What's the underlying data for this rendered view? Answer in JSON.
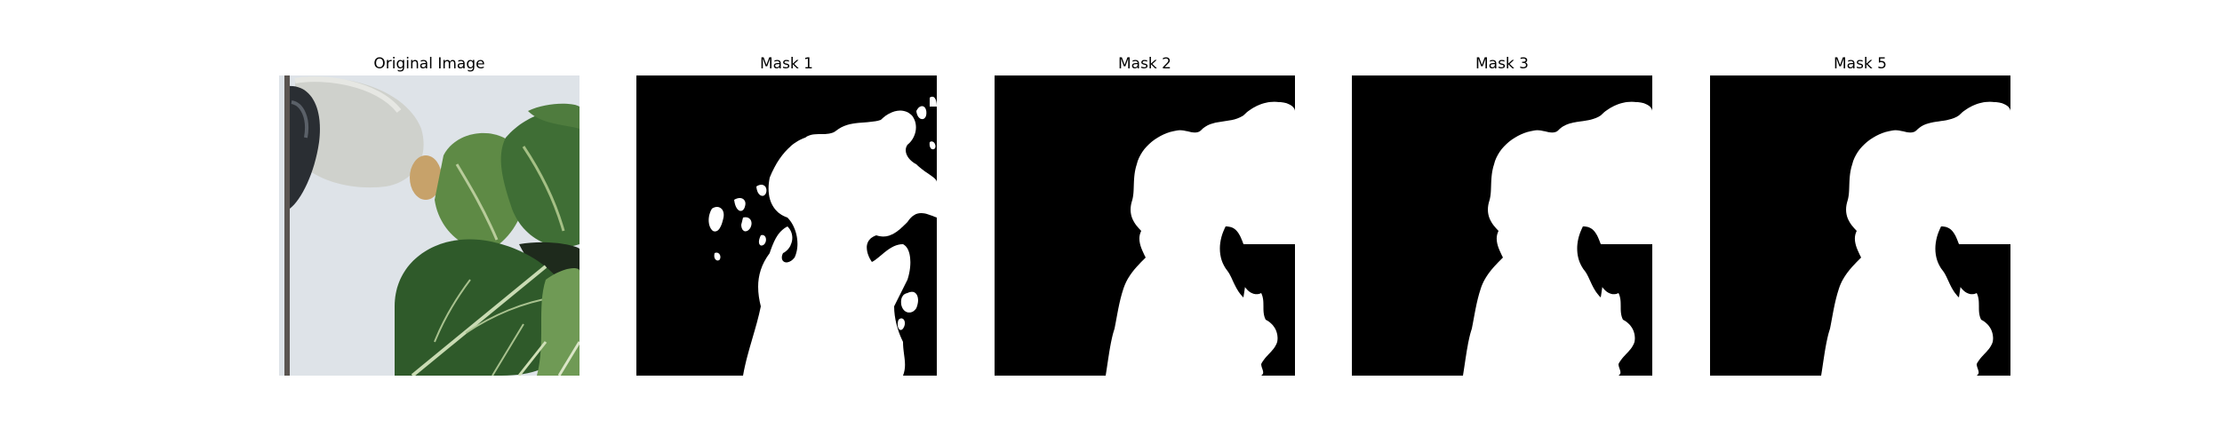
{
  "figure": {
    "panels": [
      {
        "title": "Original Image",
        "kind": "photo"
      },
      {
        "title": "Mask 1",
        "kind": "mask"
      },
      {
        "title": "Mask 2",
        "kind": "mask"
      },
      {
        "title": "Mask 3",
        "kind": "mask"
      },
      {
        "title": "Mask 5",
        "kind": "mask"
      }
    ]
  },
  "colors": {
    "mask_background": "#000000",
    "mask_foreground": "#ffffff",
    "photo_background": "#d6dde3",
    "leaf_dark": "#2f5a2a",
    "leaf_mid": "#4a7a3a",
    "leaf_light": "#6f9a55",
    "pot": "#c9cbc6"
  }
}
